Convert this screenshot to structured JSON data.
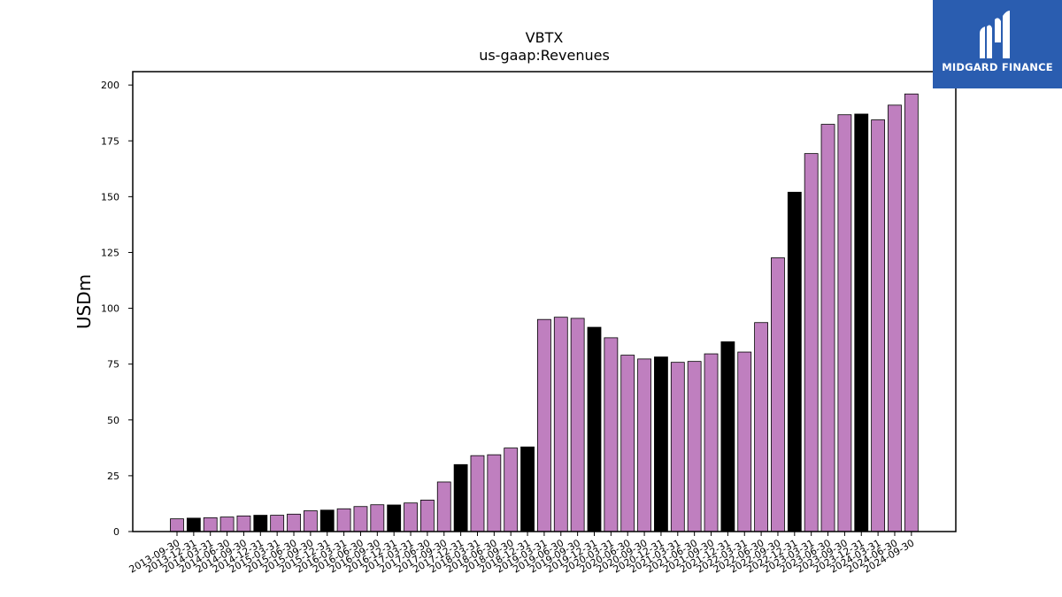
{
  "brand": {
    "name": "MIDGARD FINANCE",
    "bg_color": "#2a5db0"
  },
  "chart_data": {
    "type": "bar",
    "title": "VBTX",
    "subtitle": "us-gaap:Revenues",
    "xlabel": "",
    "ylabel": "USDm",
    "ylim": [
      0,
      206
    ],
    "yticks": [
      0,
      25,
      50,
      75,
      100,
      125,
      150,
      175,
      200
    ],
    "grid": false,
    "legend": "none",
    "colors": {
      "quarter": "#bf7fbf",
      "year_end": "#000000",
      "edge": "#000000"
    },
    "categories": [
      "2013-09-30",
      "2013-12-31",
      "2014-03-31",
      "2014-06-30",
      "2014-09-30",
      "2014-12-31",
      "2015-03-31",
      "2015-06-30",
      "2015-09-30",
      "2015-12-31",
      "2016-03-31",
      "2016-06-30",
      "2016-09-30",
      "2016-12-31",
      "2017-03-31",
      "2017-06-30",
      "2017-09-30",
      "2017-12-31",
      "2018-03-31",
      "2018-06-30",
      "2018-09-30",
      "2018-12-31",
      "2019-03-31",
      "2019-06-30",
      "2019-09-30",
      "2019-12-31",
      "2020-03-31",
      "2020-06-30",
      "2020-09-30",
      "2020-12-31",
      "2021-03-31",
      "2021-06-30",
      "2021-09-30",
      "2021-12-31",
      "2022-03-31",
      "2022-06-30",
      "2022-09-30",
      "2022-12-31",
      "2023-03-31",
      "2023-06-30",
      "2023-09-30",
      "2023-12-31",
      "2024-03-31",
      "2024-06-30",
      "2024-09-30"
    ],
    "values": [
      5.7,
      6.0,
      6.2,
      6.5,
      7.0,
      7.3,
      7.3,
      7.8,
      9.3,
      9.6,
      10.2,
      11.2,
      12.0,
      11.9,
      12.8,
      14.1,
      22.2,
      30.0,
      34.0,
      34.4,
      37.4,
      37.9,
      95.0,
      96.0,
      95.5,
      91.5,
      86.8,
      79.0,
      77.3,
      78.2,
      75.8,
      76.2,
      79.6,
      85.0,
      80.4,
      93.6,
      122.6,
      152.0,
      169.3,
      182.4,
      186.7,
      187.0,
      184.4,
      191.0,
      196.0
    ],
    "year_end_flags": [
      false,
      true,
      false,
      false,
      false,
      true,
      false,
      false,
      false,
      true,
      false,
      false,
      false,
      true,
      false,
      false,
      false,
      true,
      false,
      false,
      false,
      true,
      false,
      false,
      false,
      true,
      false,
      false,
      false,
      true,
      false,
      false,
      false,
      true,
      false,
      false,
      false,
      true,
      false,
      false,
      false,
      true,
      false,
      false,
      false
    ]
  }
}
